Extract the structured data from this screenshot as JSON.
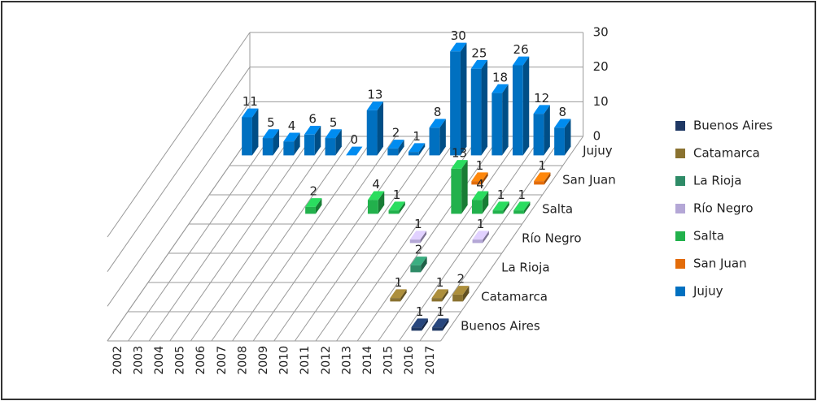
{
  "chart_data": {
    "type": "bar",
    "categories": [
      "2002",
      "2003",
      "2004",
      "2005",
      "2006",
      "2007",
      "2008",
      "2009",
      "2010",
      "2011",
      "2012",
      "2013",
      "2014",
      "2015",
      "2016",
      "2017"
    ],
    "series": [
      {
        "name": "Buenos Aires",
        "color": "#1f3864",
        "values": [
          null,
          null,
          null,
          null,
          null,
          null,
          null,
          null,
          null,
          null,
          null,
          null,
          null,
          null,
          1,
          1
        ]
      },
      {
        "name": "Catamarca",
        "color": "#8a7230",
        "values": [
          null,
          null,
          null,
          null,
          null,
          null,
          null,
          null,
          null,
          null,
          null,
          null,
          1,
          null,
          1,
          2
        ]
      },
      {
        "name": "La Rioja",
        "color": "#2e8b67",
        "values": [
          null,
          null,
          null,
          null,
          null,
          null,
          null,
          null,
          null,
          null,
          null,
          null,
          2,
          null,
          null,
          null
        ]
      },
      {
        "name": "Río Negro",
        "color": "#b4a7d6",
        "values": [
          null,
          null,
          null,
          null,
          null,
          null,
          null,
          null,
          null,
          null,
          null,
          1,
          null,
          null,
          1,
          null
        ]
      },
      {
        "name": "Salta",
        "color": "#22b14c",
        "values": [
          null,
          null,
          null,
          null,
          null,
          2,
          null,
          null,
          4,
          1,
          null,
          null,
          13,
          4,
          1,
          1
        ]
      },
      {
        "name": "San Juan",
        "color": "#e36c09",
        "values": [
          null,
          null,
          null,
          null,
          null,
          null,
          null,
          null,
          null,
          null,
          null,
          null,
          1,
          null,
          null,
          1
        ]
      },
      {
        "name": "Jujuy",
        "color": "#0070c0",
        "values": [
          11,
          5,
          4,
          6,
          5,
          0,
          13,
          2,
          1,
          8,
          30,
          25,
          18,
          26,
          12,
          8
        ]
      }
    ],
    "ylim": [
      0,
      30
    ],
    "yticks": [
      0,
      10,
      20,
      30
    ],
    "grid": true
  }
}
